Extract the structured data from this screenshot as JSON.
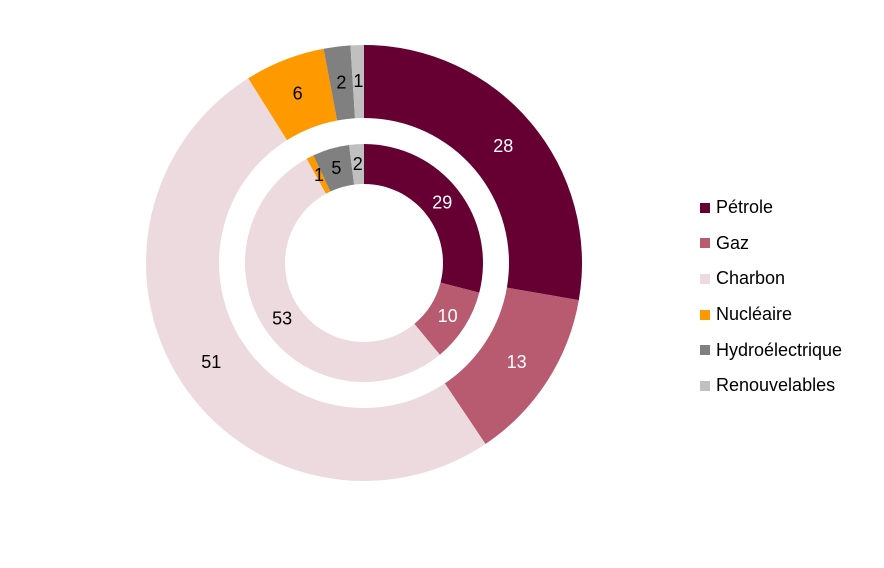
{
  "chart_data": {
    "type": "donut",
    "categories": [
      "Pétrole",
      "Gaz",
      "Charbon",
      "Nucléaire",
      "Hydroélectrique",
      "Renouvelables"
    ],
    "colors": [
      "#660033",
      "#b85a70",
      "#eddadf",
      "#ff9900",
      "#808080",
      "#c0c0c0"
    ],
    "series": [
      {
        "ring": "outer",
        "values": [
          28,
          13,
          51,
          6,
          2,
          1
        ],
        "labels": [
          "28",
          "13",
          "51",
          "6",
          "2",
          "1"
        ]
      },
      {
        "ring": "inner",
        "values": [
          29,
          10,
          53,
          1,
          5,
          2
        ],
        "labels": [
          "29",
          "10",
          "53",
          "1",
          "5",
          "2"
        ]
      }
    ],
    "label_colors": [
      "#ffffff",
      "#ffffff",
      "#000000",
      "#000000",
      "#000000",
      "#000000"
    ],
    "legend_position": "right"
  }
}
